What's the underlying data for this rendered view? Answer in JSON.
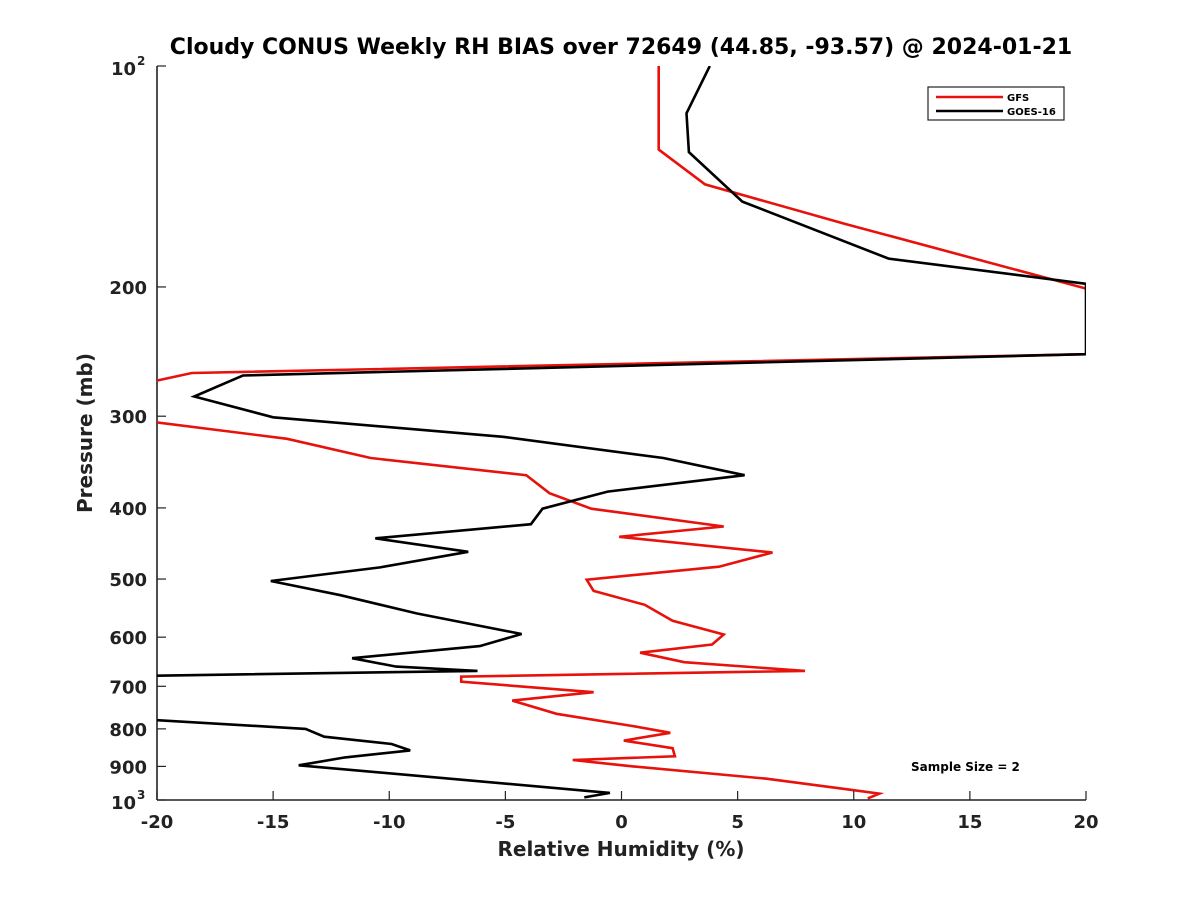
{
  "chart_data": {
    "type": "line",
    "title": "Cloudy CONUS Weekly RH BIAS over 72649 (44.85, -93.57) @ 2024-01-21",
    "xlabel": "Relative Humidity (%)",
    "ylabel": "Pressure (mb)",
    "xlim": [
      -20,
      20
    ],
    "ylim": [
      100,
      1000
    ],
    "y_scale": "log",
    "y_reversed": true,
    "grid": false,
    "legend_position": "top-right",
    "x_ticks": [
      "-20",
      "-15",
      "-10",
      "-5",
      "0",
      "5",
      "10",
      "15",
      "20"
    ],
    "y_ticks": [
      {
        "base": "10",
        "exp": "2"
      },
      {
        "text": "200"
      },
      {
        "text": "300"
      },
      {
        "text": "400"
      },
      {
        "text": "500"
      },
      {
        "text": "600"
      },
      {
        "text": "700"
      },
      {
        "text": "800"
      },
      {
        "text": "900"
      },
      {
        "base": "10",
        "exp": "3"
      }
    ],
    "annotation": "Sample Size = 2",
    "series": [
      {
        "name": "GFS",
        "color": "#e8120c",
        "points": [
          [
            1.6,
            100
          ],
          [
            1.6,
            116
          ],
          [
            1.6,
            130
          ],
          [
            3.6,
            145
          ],
          [
            9.6,
            164
          ],
          [
            20.5,
            203
          ],
          [
            20,
            247
          ],
          [
            -18.5,
            262
          ],
          [
            -20.4,
            270
          ],
          [
            -20.3,
            305
          ],
          [
            -14.4,
            322
          ],
          [
            -10.8,
            342
          ],
          [
            -4.1,
            361
          ],
          [
            -3.1,
            382
          ],
          [
            -1.3,
            401
          ],
          [
            4.4,
            424
          ],
          [
            -0.1,
            438
          ],
          [
            6.5,
            460
          ],
          [
            4.2,
            481
          ],
          [
            -1.5,
            501
          ],
          [
            -1.2,
            519
          ],
          [
            1.0,
            542
          ],
          [
            2.2,
            570
          ],
          [
            4.4,
            595
          ],
          [
            3.9,
            614
          ],
          [
            0.8,
            630
          ],
          [
            2.7,
            649
          ],
          [
            7.9,
            667
          ],
          [
            -6.9,
            679
          ],
          [
            -6.9,
            690
          ],
          [
            -1.2,
            713
          ],
          [
            -4.7,
            732
          ],
          [
            -2.8,
            763
          ],
          [
            0.5,
            793
          ],
          [
            2.1,
            810
          ],
          [
            0.1,
            830
          ],
          [
            2.2,
            850
          ],
          [
            2.3,
            872
          ],
          [
            -2.1,
            882
          ],
          [
            0.5,
            900
          ],
          [
            6.2,
            935
          ],
          [
            9.8,
            968
          ],
          [
            11.1,
            980
          ],
          [
            10.6,
            995
          ]
        ]
      },
      {
        "name": "GOES-16",
        "color": "#000000",
        "points": [
          [
            3.8,
            100
          ],
          [
            2.8,
            116
          ],
          [
            2.9,
            131
          ],
          [
            5.2,
            153
          ],
          [
            11.5,
            183
          ],
          [
            20,
            198
          ],
          [
            20,
            247
          ],
          [
            -16.3,
            264
          ],
          [
            -18.4,
            282
          ],
          [
            -15.0,
            301
          ],
          [
            -5.1,
            320
          ],
          [
            1.8,
            342
          ],
          [
            5.3,
            361
          ],
          [
            -0.6,
            380
          ],
          [
            -3.4,
            401
          ],
          [
            -3.9,
            421
          ],
          [
            -10.6,
            440
          ],
          [
            -6.6,
            459
          ],
          [
            -10.4,
            482
          ],
          [
            -15.1,
            503
          ],
          [
            -12.1,
            526
          ],
          [
            -8.8,
            557
          ],
          [
            -4.3,
            594
          ],
          [
            -6.1,
            617
          ],
          [
            -11.6,
            641
          ],
          [
            -9.7,
            658
          ],
          [
            -6.2,
            667
          ],
          [
            -20.1,
            677
          ],
          [
            -20.1,
            778
          ],
          [
            -13.6,
            800
          ],
          [
            -12.8,
            820
          ],
          [
            -9.9,
            839
          ],
          [
            -9.1,
            856
          ],
          [
            -11.9,
            875
          ],
          [
            -13.9,
            897
          ],
          [
            -0.5,
            978
          ],
          [
            -1.6,
            992
          ]
        ]
      }
    ]
  }
}
